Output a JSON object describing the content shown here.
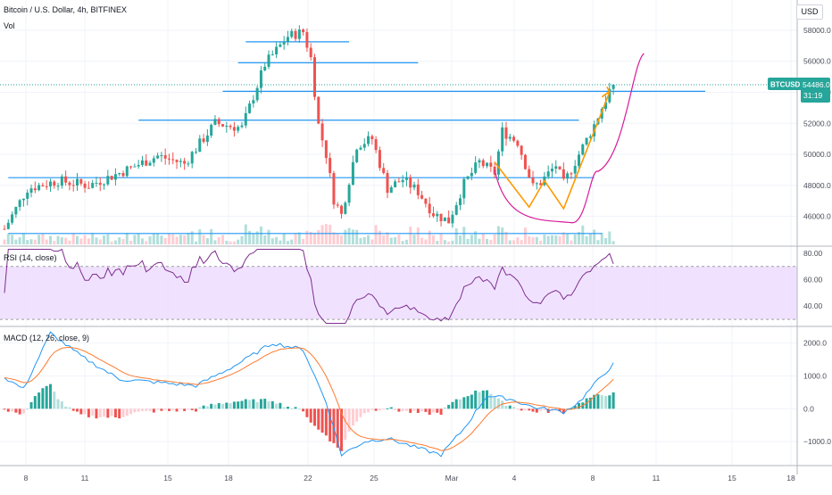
{
  "header": {
    "symbol_line": "Bitcoin / U.S. Dollar, 4h, BITFINEX",
    "vol_label": "Vol",
    "currency_button": "USD"
  },
  "price_badge": {
    "symbol": "BTCUSD",
    "price": "54486.0",
    "countdown": "31:19"
  },
  "colors": {
    "up": "#26a69a",
    "down": "#ef5350",
    "trendline": "#2196f3",
    "orange": "#ff9800",
    "magenta": "#d81b9a",
    "rsi_line": "#7e2f8e",
    "rsi_band": "#e9d5ff",
    "macd": "#2196f3",
    "signal": "#ff7a2f",
    "hist_up_strong": "#26a69a",
    "hist_up_weak": "#b2dfdb",
    "hist_down_strong": "#ef5350",
    "hist_down_weak": "#ffcdd2"
  },
  "chart_data": [
    {
      "type": "candlestick",
      "title": "Bitcoin / U.S. Dollar, 4h, BITFINEX",
      "x_ticks": [
        "8",
        "11",
        "15",
        "18",
        "22",
        "25",
        "Mar",
        "4",
        "8",
        "11",
        "15",
        "18"
      ],
      "y_ticks": [
        "58000.0",
        "56000.0",
        "54000.0",
        "52000.0",
        "50000.0",
        "48000.0",
        "46000.0"
      ],
      "ylim": [
        44200,
        59600
      ],
      "n_bars": 160,
      "last_price": 54486.0,
      "shape_points": [
        [
          0,
          45200
        ],
        [
          6,
          47800
        ],
        [
          14,
          48300
        ],
        [
          22,
          48000
        ],
        [
          30,
          48800
        ],
        [
          40,
          49900
        ],
        [
          47,
          49400
        ],
        [
          55,
          52000
        ],
        [
          62,
          51700
        ],
        [
          68,
          55800
        ],
        [
          74,
          57600
        ],
        [
          78,
          57900
        ],
        [
          80,
          56200
        ],
        [
          82,
          51900
        ],
        [
          84,
          50000
        ],
        [
          86,
          47100
        ],
        [
          88,
          46100
        ],
        [
          92,
          50600
        ],
        [
          96,
          51000
        ],
        [
          100,
          47800
        ],
        [
          104,
          48400
        ],
        [
          108,
          47600
        ],
        [
          112,
          46200
        ],
        [
          116,
          45700
        ],
        [
          120,
          48100
        ],
        [
          124,
          49500
        ],
        [
          128,
          48800
        ],
        [
          130,
          51500
        ],
        [
          134,
          50800
        ],
        [
          138,
          47900
        ],
        [
          140,
          48200
        ],
        [
          144,
          49300
        ],
        [
          146,
          48100
        ],
        [
          150,
          50000
        ],
        [
          154,
          51900
        ],
        [
          158,
          54100
        ],
        [
          159,
          54486
        ]
      ],
      "horizontal_levels": [
        {
          "price": 57250,
          "from_bar": 63,
          "to_bar": 90
        },
        {
          "price": 55900,
          "from_bar": 61,
          "to_bar": 108
        },
        {
          "price": 54060,
          "from_bar": 57,
          "to_bar": 184
        },
        {
          "price": 52200,
          "from_bar": 35,
          "to_bar": 150
        },
        {
          "price": 48500,
          "from_bar": 1,
          "to_bar": 154
        },
        {
          "price": 44900,
          "from_bar": 1,
          "to_bar": 156
        }
      ]
    },
    {
      "type": "line",
      "title": "RSI (14, close)",
      "y_ticks": [
        "80.00",
        "60.00",
        "40.00"
      ],
      "ylim": [
        26,
        84
      ],
      "band": [
        30,
        70
      ],
      "last_value": 72
    },
    {
      "type": "bar+line",
      "title": "MACD (12, 26, close, 9)",
      "y_ticks": [
        "2000.0",
        "1000.0",
        "0.0",
        "−1000.0"
      ],
      "ylim": [
        -1620,
        2450
      ],
      "series": [
        {
          "values_shape": [
            [
              0,
              950
            ],
            [
              5,
              600
            ],
            [
              12,
              2300
            ],
            [
              20,
              1600
            ],
            [
              30,
              900
            ],
            [
              40,
              800
            ],
            [
              50,
              700
            ],
            [
              60,
              1300
            ],
            [
              70,
              2000
            ],
            [
              78,
              1800
            ],
            [
              84,
              200
            ],
            [
              88,
              -1400
            ],
            [
              94,
              -1000
            ],
            [
              100,
              -900
            ],
            [
              108,
              -1200
            ],
            [
              114,
              -1400
            ],
            [
              120,
              -600
            ],
            [
              126,
              400
            ],
            [
              132,
              300
            ],
            [
              138,
              50
            ],
            [
              146,
              -100
            ],
            [
              150,
              200
            ],
            [
              156,
              1000
            ],
            [
              159,
              1350
            ]
          ]
        }
      ]
    }
  ]
}
